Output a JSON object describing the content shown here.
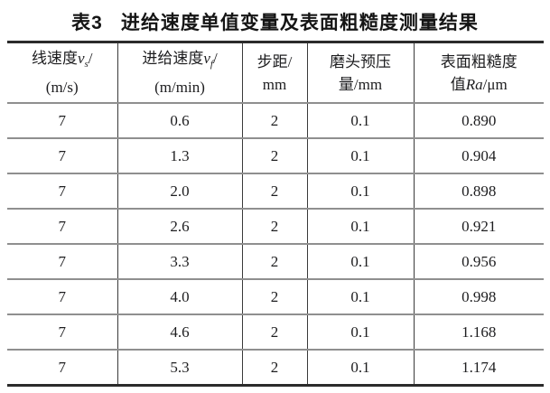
{
  "title": {
    "label": "表3",
    "text": "进给速度单值变量及表面粗糙度测量结果"
  },
  "table": {
    "colors": {
      "outer_border": "#2b2b2b",
      "inner_horizontal_rule": "#8f8f8f",
      "inner_vertical_rule": "#3a3a3a",
      "text": "#1d1d1f",
      "background": "#ffffff"
    },
    "headers": [
      {
        "name": "linear-speed",
        "line1": [
          {
            "t": "线速度"
          },
          {
            "t": "v",
            "style": "var"
          },
          {
            "t": "s",
            "style": "var-sub"
          },
          {
            "t": "/"
          }
        ],
        "line2": [
          {
            "t": "(m/s)"
          }
        ]
      },
      {
        "name": "feed-rate",
        "line1": [
          {
            "t": "进给速度"
          },
          {
            "t": "v",
            "style": "var"
          },
          {
            "t": "f",
            "style": "var-sub"
          },
          {
            "t": "/"
          }
        ],
        "line2": [
          {
            "t": "(m/min)"
          }
        ]
      },
      {
        "name": "step-distance",
        "line1": [
          {
            "t": "步距/"
          }
        ],
        "line2": [
          {
            "t": "mm"
          }
        ]
      },
      {
        "name": "head-preload",
        "line1": [
          {
            "t": "磨头预压"
          }
        ],
        "line2": [
          {
            "t": "量/mm"
          }
        ]
      },
      {
        "name": "surface-roughness",
        "line1": [
          {
            "t": "表面粗糙度"
          }
        ],
        "line2": [
          {
            "t": "值"
          },
          {
            "t": "Ra",
            "style": "var"
          },
          {
            "t": "/μm"
          }
        ]
      }
    ],
    "rows": [
      [
        "7",
        "0.6",
        "2",
        "0.1",
        "0.890"
      ],
      [
        "7",
        "1.3",
        "2",
        "0.1",
        "0.904"
      ],
      [
        "7",
        "2.0",
        "2",
        "0.1",
        "0.898"
      ],
      [
        "7",
        "2.6",
        "2",
        "0.1",
        "0.921"
      ],
      [
        "7",
        "3.3",
        "2",
        "0.1",
        "0.956"
      ],
      [
        "7",
        "4.0",
        "2",
        "0.1",
        "0.998"
      ],
      [
        "7",
        "4.6",
        "2",
        "0.1",
        "1.168"
      ],
      [
        "7",
        "5.3",
        "2",
        "0.1",
        "1.174"
      ]
    ]
  }
}
